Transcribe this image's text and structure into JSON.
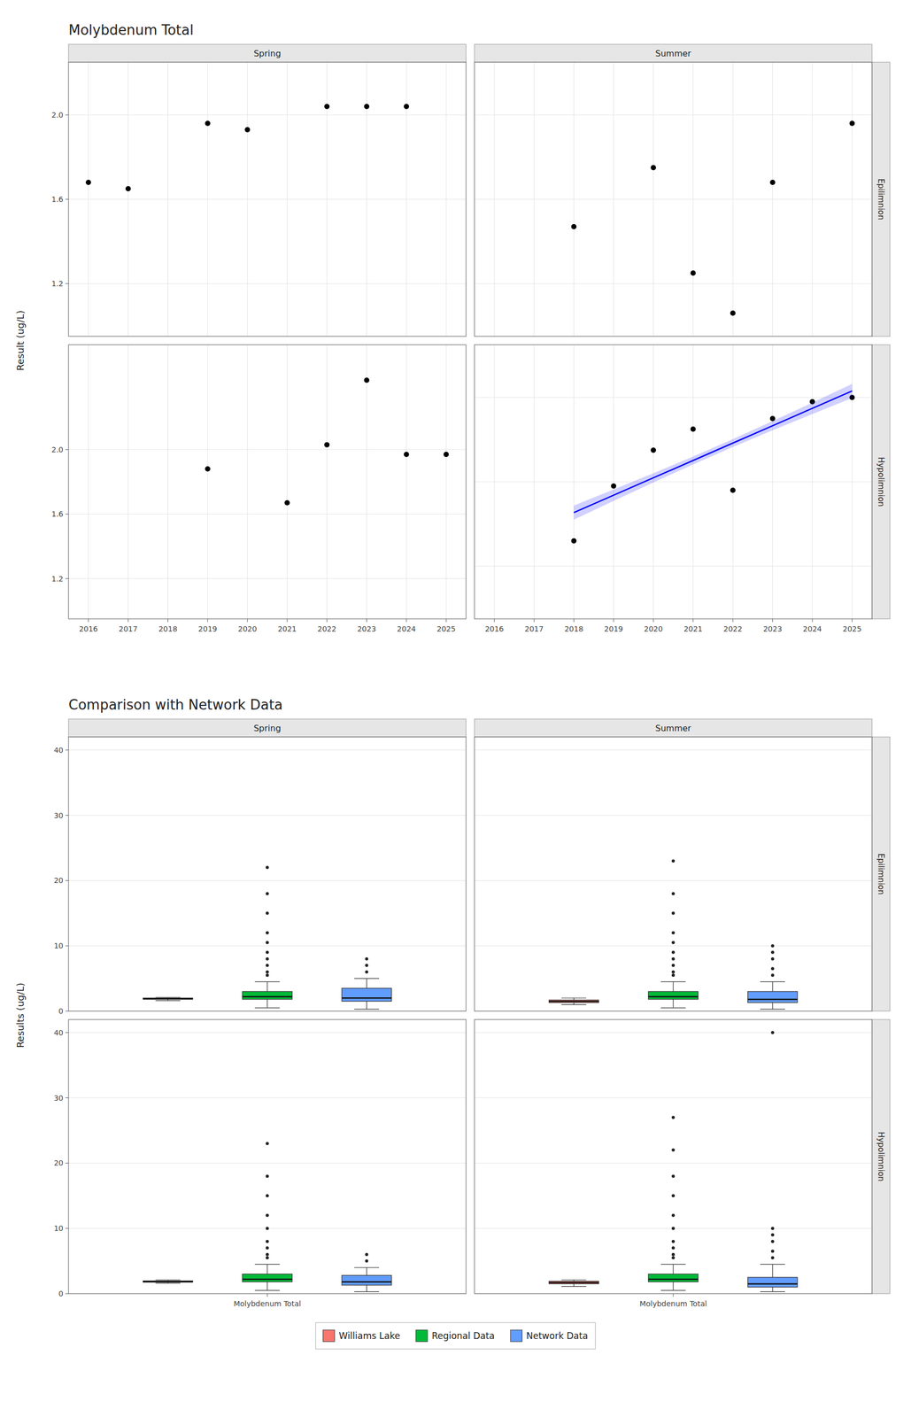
{
  "chart_data": [
    {
      "type": "scatter",
      "title": "Molybdenum Total",
      "ylabel": "Result (ug/L)",
      "columns": [
        "Spring",
        "Summer"
      ],
      "rows": [
        "Epilimnion",
        "Hypolimnion"
      ],
      "grid": true,
      "xlim": [
        2015.5,
        2025.5
      ],
      "xticks": [
        2016,
        2017,
        2018,
        2019,
        2020,
        2021,
        2022,
        2023,
        2024,
        2025
      ],
      "panels": [
        {
          "tick_labels": "y",
          "ylim": [
            0.95,
            2.25
          ],
          "yticks": [
            1.2,
            1.6,
            {
              "value": 2.0,
              "label": "2.0"
            }
          ],
          "series": [
            {
              "type": "scatter",
              "color": "#000000",
              "x": [
                2016,
                2017,
                2019,
                2020,
                2022,
                2023,
                2024
              ],
              "values": [
                1.68,
                1.65,
                1.96,
                1.93,
                2.04,
                2.04,
                2.04
              ]
            }
          ]
        },
        {
          "tick_labels": false,
          "ylim": [
            0.95,
            2.25
          ],
          "yticks": [
            1.2,
            1.6,
            {
              "value": 2.0,
              "label": "2.0"
            }
          ],
          "series": [
            {
              "type": "scatter",
              "color": "#000000",
              "x": [
                2018,
                2020,
                2021,
                2022,
                2023,
                2025
              ],
              "values": [
                1.47,
                1.75,
                1.25,
                1.06,
                1.68,
                1.96
              ]
            }
          ]
        },
        {
          "ylim": [
            0.95,
            2.65
          ],
          "yticks": [
            1.2,
            1.6,
            {
              "value": 2.0,
              "label": "2.0"
            }
          ],
          "series": [
            {
              "type": "scatter",
              "color": "#000000",
              "x": [
                2019,
                2021,
                2022,
                2023,
                2024,
                2025
              ],
              "values": [
                1.88,
                1.67,
                2.03,
                2.43,
                1.97,
                1.97
              ]
            }
          ]
        },
        {
          "tick_labels": "x",
          "ylim": [
            0.95,
            2.25
          ],
          "yticks": [
            1.2,
            1.6,
            {
              "value": 2.0,
              "label": "2.0"
            }
          ],
          "series": [
            {
              "type": "scatter",
              "color": "#000000",
              "x": [
                2018,
                2019,
                2020,
                2021,
                2022,
                2023,
                2024,
                2025
              ],
              "values": [
                1.32,
                1.58,
                1.75,
                1.85,
                1.56,
                1.9,
                1.98,
                2.0
              ]
            },
            {
              "type": "line",
              "color": "#0000ff",
              "x": [
                2018,
                2019,
                2020,
                2021,
                2022,
                2023,
                2024,
                2025
              ],
              "values": [
                1.4542,
                1.5365,
                1.6189,
                1.7013,
                1.7837,
                1.8661,
                1.9485,
                2.0308
              ],
              "ci_lower": [
                1.4208,
                1.5095,
                1.5971,
                1.6826,
                1.765,
                1.8442,
                1.9214,
                1.9975
              ],
              "ci_upper": [
                1.4875,
                1.5636,
                1.6408,
                1.72,
                1.8024,
                1.8879,
                1.9755,
                2.0642
              ]
            }
          ]
        }
      ]
    },
    {
      "type": "box",
      "title": "Comparison with Network Data",
      "ylabel": "Results (ug/L)",
      "columns": [
        "Spring",
        "Summer"
      ],
      "rows": [
        "Epilimnion",
        "Hypolimnion"
      ],
      "grid": "y",
      "legend": "bottom",
      "categories": [
        "Molybdenum Total"
      ],
      "ylim": [
        0,
        42
      ],
      "yticks": [
        0,
        10,
        20,
        30,
        40
      ],
      "series": [
        {
          "name": "Williams Lake",
          "color": "#F8766D"
        },
        {
          "name": "Regional Data",
          "color": "#00BA38"
        },
        {
          "name": "Network Data",
          "color": "#619CFF"
        }
      ],
      "panels": [
        {
          "tick_labels": "y",
          "boxes": [
            {
              "median": 1.9,
              "q1": 1.8,
              "q3": 2.0,
              "whislo": 1.6,
              "whishi": 2.1,
              "fliers": []
            },
            {
              "median": 2.2,
              "q1": 1.8,
              "q3": 3.0,
              "whislo": 0.5,
              "whishi": 4.5,
              "fliers": [
                5.5,
                6.0,
                7.0,
                8.0,
                9.0,
                10.5,
                12.0,
                15.0,
                18.0,
                22.0
              ]
            },
            {
              "median": 2.0,
              "q1": 1.5,
              "q3": 3.5,
              "whislo": 0.3,
              "whishi": 5.0,
              "fliers": [
                6.0,
                7.0,
                8.0
              ]
            }
          ]
        },
        {
          "tick_labels": false,
          "boxes": [
            {
              "median": 1.5,
              "q1": 1.3,
              "q3": 1.7,
              "whislo": 1.0,
              "whishi": 2.0,
              "fliers": []
            },
            {
              "median": 2.2,
              "q1": 1.8,
              "q3": 3.0,
              "whislo": 0.5,
              "whishi": 4.5,
              "fliers": [
                5.5,
                6.0,
                7.0,
                8.0,
                9.0,
                10.5,
                12.0,
                15.0,
                18.0,
                23.0
              ]
            },
            {
              "median": 1.8,
              "q1": 1.3,
              "q3": 3.0,
              "whislo": 0.3,
              "whishi": 4.5,
              "fliers": [
                5.5,
                6.5,
                8.0,
                9.0,
                10.0
              ]
            }
          ]
        },
        {
          "boxes": [
            {
              "median": 1.85,
              "q1": 1.75,
              "q3": 1.95,
              "whislo": 1.6,
              "whishi": 2.1,
              "fliers": []
            },
            {
              "median": 2.2,
              "q1": 1.8,
              "q3": 3.0,
              "whislo": 0.5,
              "whishi": 4.5,
              "fliers": [
                5.5,
                6.0,
                7.0,
                8.0,
                10.0,
                12.0,
                15.0,
                18.0,
                23.0
              ]
            },
            {
              "median": 1.8,
              "q1": 1.3,
              "q3": 2.8,
              "whislo": 0.3,
              "whishi": 4.0,
              "fliers": [
                5.0,
                6.0
              ]
            }
          ]
        },
        {
          "tick_labels": "x",
          "boxes": [
            {
              "median": 1.7,
              "q1": 1.5,
              "q3": 1.9,
              "whislo": 1.1,
              "whishi": 2.1,
              "fliers": []
            },
            {
              "median": 2.2,
              "q1": 1.8,
              "q3": 3.0,
              "whislo": 0.5,
              "whishi": 4.5,
              "fliers": [
                5.5,
                6.0,
                7.0,
                8.0,
                10.0,
                12.0,
                15.0,
                18.0,
                22.0,
                27.0
              ]
            },
            {
              "median": 1.5,
              "q1": 1.0,
              "q3": 2.5,
              "whislo": 0.3,
              "whishi": 4.5,
              "fliers": [
                5.5,
                6.5,
                8.0,
                9.0,
                10.0,
                40.0
              ]
            }
          ]
        }
      ]
    }
  ]
}
